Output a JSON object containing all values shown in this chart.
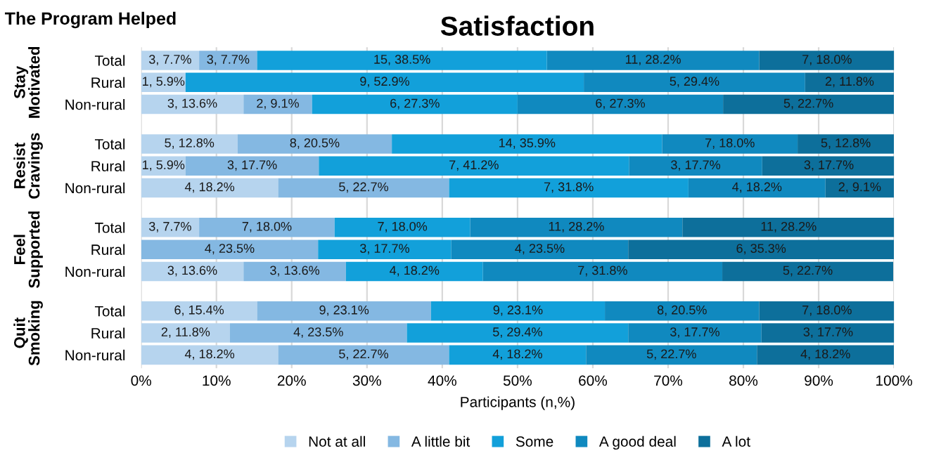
{
  "chart_data": {
    "type": "bar",
    "orientation": "horizontal",
    "stacked": true,
    "title": "Satisfaction",
    "xlabel": "Participants (n,%)",
    "annotations": [
      "The Program Helped",
      "Stay Motivated",
      "Resist Cravings",
      "Feel Supported",
      "Quit Smoking"
    ],
    "categories": [
      "Total",
      "Rural",
      "Non-rural",
      "Total",
      "Rural",
      "Non-rural",
      "Total",
      "Rural",
      "Non-rural",
      "Total",
      "Rural",
      "Non-rural"
    ],
    "series": [
      {
        "name": "Not at all",
        "color": "#b6d4ee",
        "values": [
          7.7,
          5.9,
          13.6,
          12.8,
          5.9,
          18.2,
          7.7,
          null,
          13.6,
          15.4,
          11.8,
          18.2
        ],
        "value_labels": [
          "3, 7.7%",
          "1, 5.9%",
          "3, 13.6%",
          "5, 12.8%",
          "1, 5.9%",
          "4, 18.2%",
          "3, 7.7%",
          null,
          "3, 13.6%",
          "6, 15.4%",
          "2, 11.8%",
          "4, 18.2%"
        ]
      },
      {
        "name": "A little bit",
        "color": "#84b8e2",
        "values": [
          7.7,
          null,
          9.1,
          20.5,
          17.7,
          22.7,
          18.0,
          23.5,
          13.6,
          23.1,
          23.5,
          22.7
        ],
        "value_labels": [
          "3, 7.7%",
          null,
          "2, 9.1%",
          "8, 20.5%",
          "3, 17.7%",
          "5, 22.7%",
          "7, 18.0%",
          "4, 23.5%",
          "3, 13.6%",
          "9, 23.1%",
          "4, 23.5%",
          "5, 22.7%"
        ]
      },
      {
        "name": "Some",
        "color": "#12a0da",
        "values": [
          38.5,
          52.9,
          27.3,
          35.9,
          41.2,
          31.8,
          18.0,
          17.7,
          18.2,
          23.1,
          29.4,
          18.2
        ],
        "value_labels": [
          "15, 38.5%",
          "9, 52.9%",
          "6, 27.3%",
          "14, 35.9%",
          "7, 41.2%",
          "7, 31.8%",
          "7, 18.0%",
          "3, 17.7%",
          "4, 18.2%",
          "9, 23.1%",
          "5, 29.4%",
          "4, 18.2%"
        ]
      },
      {
        "name": "A good deal",
        "color": "#1089bf",
        "values": [
          28.2,
          29.4,
          27.3,
          18.0,
          17.7,
          18.2,
          28.2,
          23.5,
          31.8,
          20.5,
          17.7,
          22.7
        ],
        "value_labels": [
          "11, 28.2%",
          "5, 29.4%",
          "6, 27.3%",
          "7, 18.0%",
          "3, 17.7%",
          "4, 18.2%",
          "11, 28.2%",
          "4, 23.5%",
          "7, 31.8%",
          "8, 20.5%",
          "3, 17.7%",
          "5, 22.7%"
        ]
      },
      {
        "name": "A lot",
        "color": "#0d6f9b",
        "values": [
          18.0,
          11.8,
          22.7,
          12.8,
          17.7,
          9.1,
          28.2,
          35.3,
          22.7,
          18.0,
          17.7,
          18.2
        ],
        "value_labels": [
          "7, 18.0%",
          "2, 11.8%",
          "5, 22.7%",
          "5, 12.8%",
          "3, 17.7%",
          "2, 9.1%",
          "11, 28.2%",
          "6, 35.3%",
          "5, 22.7%",
          "7, 18.0%",
          "3, 17.7%",
          "4, 18.2%"
        ]
      }
    ],
    "xlim": [
      0,
      100
    ],
    "xticks": [
      {
        "value": 0,
        "label": "0%"
      },
      {
        "value": 10,
        "label": "10%"
      },
      {
        "value": 20,
        "label": "20%"
      },
      {
        "value": 30,
        "label": "30%"
      },
      {
        "value": 40,
        "label": "40%"
      },
      {
        "value": 50,
        "label": "50%"
      },
      {
        "value": 60,
        "label": "60%"
      },
      {
        "value": 70,
        "label": "70%"
      },
      {
        "value": 80,
        "label": "80%"
      },
      {
        "value": 90,
        "label": "90%"
      },
      {
        "value": 100,
        "label": "100%"
      }
    ],
    "grid": "x",
    "legend": "bottom"
  }
}
